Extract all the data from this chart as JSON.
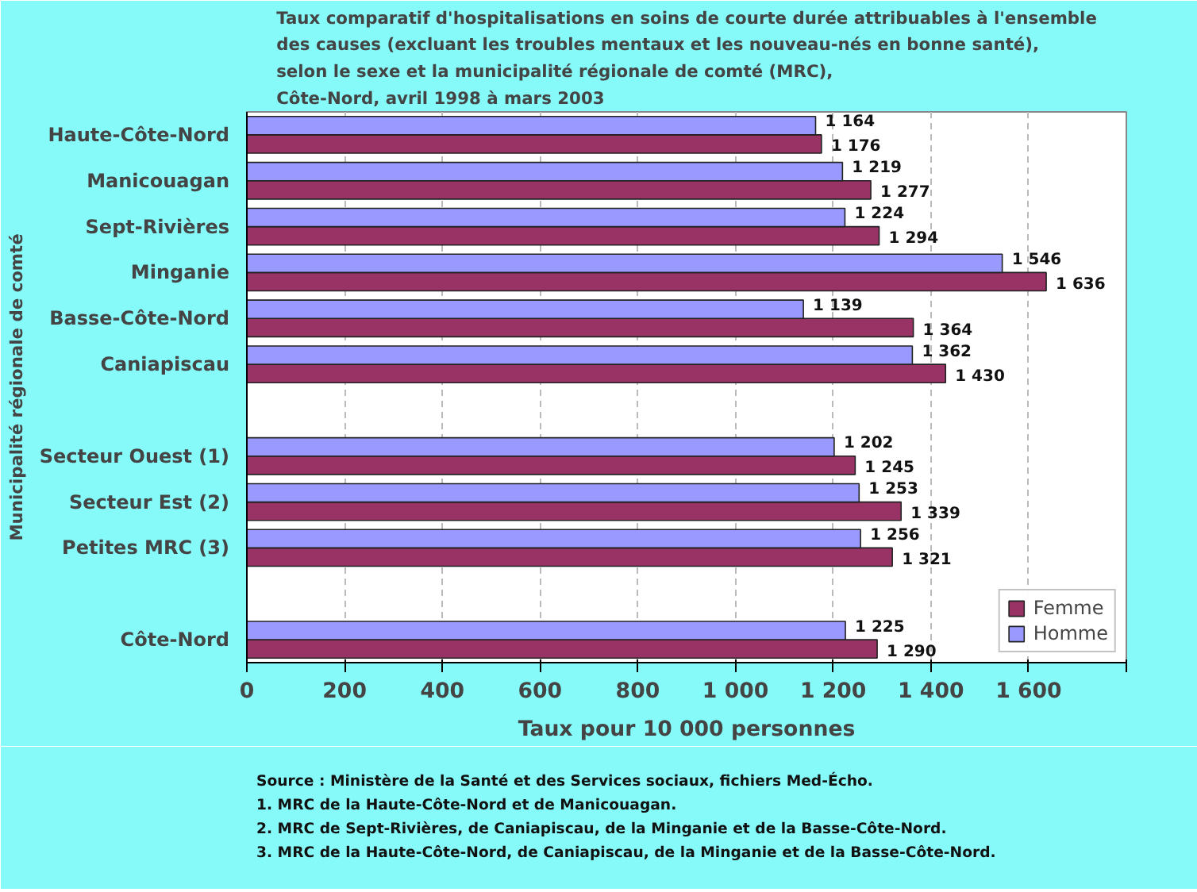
{
  "chart_data": {
    "type": "bar",
    "orientation": "horizontal",
    "title": "Taux comparatif d'hospitalisations en soins de courte durée attribuables à l'ensemble\ndes causes (excluant les troubles mentaux et les nouveau-nés en bonne santé),\nselon le sexe et la municipalité régionale de comté (MRC),\nCôte-Nord, avril 1998 à mars 2003",
    "xlabel": "Taux pour 10 000 personnes",
    "ylabel": "Municipalité régionale de comté",
    "categories": [
      "Haute-Côte-Nord",
      "Manicouagan",
      "Sept-Rivières",
      "Minganie",
      "Basse-Côte-Nord",
      "Caniapiscau",
      null,
      "Secteur Ouest (1)",
      "Secteur Est (2)",
      "Petites MRC (3)",
      null,
      "Côte-Nord"
    ],
    "series": [
      {
        "name": "Femme",
        "color": "#993366",
        "values": [
          1176,
          1277,
          1294,
          1636,
          1364,
          1430,
          null,
          1245,
          1339,
          1321,
          null,
          1290
        ],
        "value_labels": [
          "1 176",
          "1 277",
          "1 294",
          "1 636",
          "1 364",
          "1 430",
          null,
          "1 245",
          "1 339",
          "1 321",
          null,
          "1 290"
        ]
      },
      {
        "name": "Homme",
        "color": "#9999ff",
        "values": [
          1164,
          1219,
          1224,
          1546,
          1139,
          1362,
          null,
          1202,
          1253,
          1256,
          null,
          1225
        ],
        "value_labels": [
          "1 164",
          "1 219",
          "1 224",
          "1 546",
          "1 139",
          "1 362",
          null,
          "1 202",
          "1 253",
          "1 256",
          null,
          "1 225"
        ]
      }
    ],
    "xlim": [
      0,
      1800
    ],
    "xticks": [
      0,
      200,
      400,
      600,
      800,
      {
        "value": 1000,
        "label": "1 000"
      },
      {
        "value": 1200,
        "label": "1 200"
      },
      {
        "value": 1400,
        "label": "1 400"
      },
      {
        "value": 1600,
        "label": "1 600"
      },
      {
        "value": 1800,
        "label": null
      }
    ],
    "grid": "x",
    "legend": "bottom right",
    "annotations": [
      "Source : Ministère de la Santé et des Services sociaux, fichiers Med-Écho.",
      "1. MRC de la Haute-Côte-Nord et de Manicouagan.",
      "2. MRC de Sept-Rivières, de Caniapiscau, de la Minganie et de la Basse-Côte-Nord.",
      "3. MRC de la Haute-Côte-Nord, de Caniapiscau, de la Minganie et de la Basse-Côte-Nord."
    ]
  }
}
